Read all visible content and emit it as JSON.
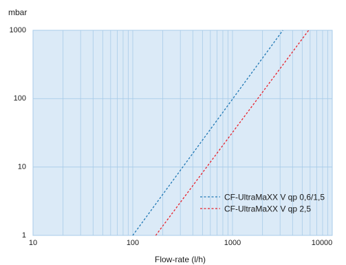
{
  "chart_data": {
    "type": "line",
    "x_scale": "log",
    "y_scale": "log",
    "xlabel": "Flow-rate (l/h)",
    "ylabel": "mbar",
    "xlim": [
      10,
      10000
    ],
    "ylim": [
      1,
      1000
    ],
    "x_ticks": [
      "10",
      "100",
      "1000",
      "10000"
    ],
    "y_ticks": [
      "1",
      "10",
      "100",
      "1000"
    ],
    "grid": true,
    "legend_position": "bottom-right",
    "colors": {
      "plot_background": "#dbeaf7",
      "grid": "#a7cbe8",
      "frame": "#a7cbe8"
    },
    "series": [
      {
        "name": "CF-UltraMaXX V qp 0,6/1,5",
        "color": "#1f77b4",
        "style": "dashed",
        "x": [
          100,
          3200
        ],
        "y": [
          1,
          1000
        ]
      },
      {
        "name": "CF-UltraMaXX V qp 2,5",
        "color": "#e8202a",
        "style": "dashed",
        "x": [
          170,
          5800
        ],
        "y": [
          1,
          1000
        ]
      }
    ]
  }
}
